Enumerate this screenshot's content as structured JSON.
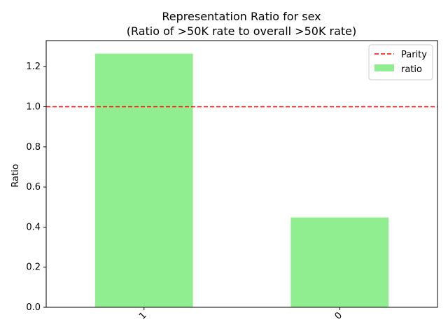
{
  "chart_data": {
    "type": "bar",
    "title": "Representation Ratio for sex",
    "subtitle": "(Ratio of >50K rate to overall >50K rate)",
    "xlabel": "",
    "ylabel": "Ratio",
    "categories": [
      "1",
      "0"
    ],
    "series": [
      {
        "name": "ratio",
        "values": [
          1.265,
          0.448
        ],
        "color": "#90ee90"
      }
    ],
    "reference_line": {
      "name": "Parity",
      "y": 1.0,
      "color": "#ff0000",
      "style": "dashed"
    },
    "ylim": [
      0,
      1.33
    ],
    "yticks": [
      0.0,
      0.2,
      0.4,
      0.6,
      0.8,
      1.0,
      1.2
    ],
    "ytick_labels": [
      "0.0",
      "0.2",
      "0.4",
      "0.6",
      "0.8",
      "1.0",
      "1.2"
    ],
    "grid": false,
    "legend_position": "top-right"
  }
}
